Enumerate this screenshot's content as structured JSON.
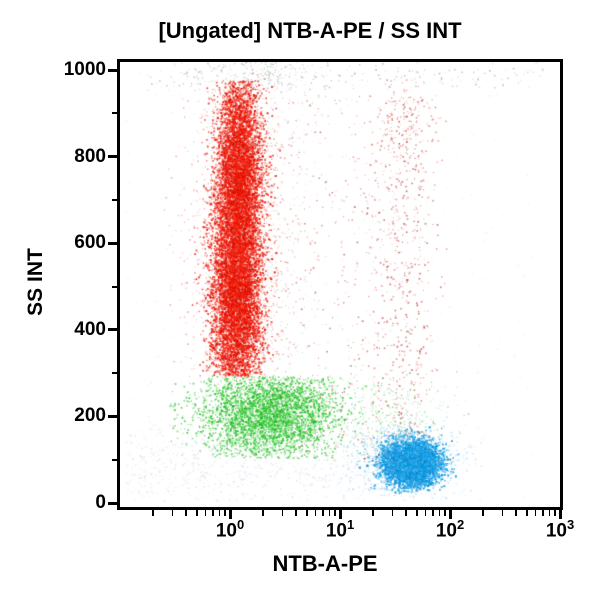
{
  "chart_data": {
    "type": "scatter",
    "subtype": "flow-cytometry-dot-plot",
    "title": "[Ungated] NTB-A-PE / SS INT",
    "xlabel": "NTB-A-PE",
    "ylabel": "SS INT",
    "x_scale": "log10",
    "xlim_log10": [
      -1,
      3
    ],
    "ylim": [
      0,
      1000
    ],
    "x_major_tick_base": "10",
    "x_major_tick_exponents": [
      0,
      1,
      2,
      3
    ],
    "x_minor_ticks_per_decade": [
      2,
      3,
      4,
      5,
      6,
      7,
      8,
      9
    ],
    "y_ticks": [
      0,
      200,
      400,
      600,
      800,
      1000
    ],
    "y_minor_ticks": [
      100,
      300,
      500,
      700,
      900
    ],
    "grid": "off",
    "legend": "none",
    "frame_color": "#000000",
    "background_color": "#ffffff",
    "populations": [
      {
        "name": "top-smear-gray",
        "desc": "sparse gray debris band along top frame",
        "n": 230,
        "x": {
          "dist": "uniform",
          "min": -0.75,
          "max": 2.85
        },
        "y": {
          "dist": "normal",
          "mean": 992,
          "sd": 26,
          "min": 912,
          "max": 1022
        },
        "colors": [
          "#b6b6b6",
          "#a2a2a2",
          "#cfcfcf",
          "#8f9e9a"
        ],
        "alpha": 0.65,
        "size": 1.0
      },
      {
        "name": "top-smear-gray-cluster",
        "desc": "denser gray smear above red peak",
        "n": 150,
        "x": {
          "dist": "normal",
          "mean": 0.28,
          "sd": 0.22,
          "min": -0.3,
          "max": 1.0
        },
        "y": {
          "dist": "normal",
          "mean": 982,
          "sd": 28,
          "min": 905,
          "max": 1022
        },
        "colors": [
          "#b0b0b0",
          "#c4c4c4",
          "#9aa8a4"
        ],
        "alpha": 0.6,
        "size": 1.0
      },
      {
        "name": "red-main-lower",
        "desc": "dense red core near 10^0, SS 300-700",
        "n": 6800,
        "x": {
          "dist": "normal",
          "mean": 0.06,
          "sd": 0.115,
          "min": -0.6,
          "max": 0.75
        },
        "y": {
          "dist": "normal",
          "mean": 495,
          "sd": 150,
          "min": 293,
          "max": 930
        },
        "colors": [
          "#f01000",
          "#e51400",
          "#ff2a14",
          "#d50f00"
        ],
        "alpha": 0.8,
        "size": 1.25
      },
      {
        "name": "red-main-upper",
        "desc": "red core upper half SS 550-970",
        "n": 4200,
        "x": {
          "dist": "normal",
          "mean": 0.09,
          "sd": 0.1,
          "min": -0.5,
          "max": 0.7
        },
        "y": {
          "dist": "normal",
          "mean": 790,
          "sd": 105,
          "min": 540,
          "max": 975
        },
        "colors": [
          "#f01000",
          "#e51400",
          "#ff2a14",
          "#d50f00"
        ],
        "alpha": 0.75,
        "size": 1.2
      },
      {
        "name": "red-halo",
        "desc": "loose red fringe around core",
        "n": 1500,
        "x": {
          "dist": "normal",
          "mean": 0.07,
          "sd": 0.24,
          "min": -0.95,
          "max": 1.1
        },
        "y": {
          "dist": "normal",
          "mean": 560,
          "sd": 235,
          "min": 272,
          "max": 1000
        },
        "colors": [
          "#f4766e",
          "#ee3c30",
          "#fa9890",
          "#e22418"
        ],
        "alpha": 0.45,
        "size": 1.0
      },
      {
        "name": "red-mid-scatter",
        "desc": "sparse red events between core and right streak",
        "n": 380,
        "x": {
          "dist": "uniform",
          "min": 0.38,
          "max": 1.38
        },
        "y": {
          "dist": "uniform",
          "min": 95,
          "max": 930
        },
        "colors": [
          "#e05048",
          "#cc2a22",
          "#f28c86",
          "#8b1a12"
        ],
        "alpha": 0.55,
        "size": 1.0
      },
      {
        "name": "red-right-column",
        "desc": "sparse red vertical streak near 10^1.6",
        "n": 650,
        "x": {
          "dist": "normal",
          "mean": 1.58,
          "sd": 0.15,
          "min": 1.1,
          "max": 2.1
        },
        "y": {
          "dist": "uniform",
          "min": 95,
          "max": 940
        },
        "colors": [
          "#d93a30",
          "#b02018",
          "#ef7068",
          "#901510",
          "#f4a0a0"
        ],
        "alpha": 0.6,
        "size": 1.05
      },
      {
        "name": "red-right-top-knot",
        "desc": "denser red knot at top of right streak",
        "n": 130,
        "x": {
          "dist": "normal",
          "mean": 1.62,
          "sd": 0.12,
          "min": 1.2,
          "max": 2.0
        },
        "y": {
          "dist": "normal",
          "mean": 880,
          "sd": 60,
          "min": 740,
          "max": 1000
        },
        "colors": [
          "#d93a30",
          "#ef7068",
          "#a81d14"
        ],
        "alpha": 0.55,
        "size": 1.0
      },
      {
        "name": "green-main",
        "desc": "green band SS 100-290 centered 10^0.36",
        "n": 3600,
        "x": {
          "dist": "normal",
          "mean": 0.36,
          "sd": 0.32,
          "min": -0.55,
          "max": 1.5
        },
        "y": {
          "dist": "normal",
          "mean": 205,
          "sd": 52,
          "min": 103,
          "max": 292
        },
        "colors": [
          "#2fd02f",
          "#1fbc1f",
          "#49d849",
          "#10a810"
        ],
        "alpha": 0.7,
        "size": 1.15
      },
      {
        "name": "green-right-tail",
        "desc": "sparse green scatter extending right above blue",
        "n": 320,
        "x": {
          "dist": "normal",
          "mean": 1.45,
          "sd": 0.3,
          "min": 0.9,
          "max": 2.2
        },
        "y": {
          "dist": "normal",
          "mean": 195,
          "sd": 60,
          "min": 90,
          "max": 330
        },
        "colors": [
          "#3fcc6a",
          "#2fd02f",
          "#7adb96"
        ],
        "alpha": 0.4,
        "size": 1.0
      },
      {
        "name": "green-specks-upper",
        "desc": "faint green specks mixed through red cloud",
        "n": 260,
        "x": {
          "dist": "normal",
          "mean": 0.28,
          "sd": 0.35,
          "min": -0.6,
          "max": 1.2
        },
        "y": {
          "dist": "uniform",
          "min": 300,
          "max": 1000
        },
        "colors": [
          "#57c878",
          "#8fd8a0",
          "#3fae5f"
        ],
        "alpha": 0.32,
        "size": 1.0
      },
      {
        "name": "blue-main",
        "desc": "dense azure ellipse centered 10^1.65, SS 92",
        "n": 5200,
        "x": {
          "dist": "normal",
          "mean": 1.65,
          "sd": 0.125,
          "min": 1.15,
          "max": 2.12
        },
        "y": {
          "dist": "normal",
          "mean": 92,
          "sd": 26,
          "min": 22,
          "max": 178
        },
        "colors": [
          "#12a0ea",
          "#0a93dd",
          "#2eb0f2",
          "#0584cc"
        ],
        "alpha": 0.85,
        "size": 1.25
      },
      {
        "name": "blue-halo",
        "desc": "loose blue fringe around azure ellipse",
        "n": 1000,
        "x": {
          "dist": "normal",
          "mean": 1.6,
          "sd": 0.25,
          "min": 0.85,
          "max": 2.35
        },
        "y": {
          "dist": "normal",
          "mean": 100,
          "sd": 42,
          "min": 8,
          "max": 215
        },
        "colors": [
          "#5cc0f0",
          "#8cd2f4",
          "#3ab0ea"
        ],
        "alpha": 0.4,
        "size": 1.0
      },
      {
        "name": "debris-bottom",
        "desc": "faint multicolor debris along bottom left",
        "n": 780,
        "x": {
          "dist": "uniform",
          "min": -0.95,
          "max": 1.5
        },
        "y": {
          "dist": "normal",
          "mean": 85,
          "sd": 55,
          "min": 4,
          "max": 205
        },
        "colors": [
          "#a8d4ee",
          "#c8c0e8",
          "#eebcc8",
          "#b8d8cc",
          "#d8d8ee"
        ],
        "alpha": 0.45,
        "size": 1.0
      },
      {
        "name": "faint-field",
        "desc": "very sparse faint events across plot",
        "n": 420,
        "x": {
          "dist": "uniform",
          "min": -0.95,
          "max": 2.75
        },
        "y": {
          "dist": "uniform",
          "min": 5,
          "max": 1010
        },
        "colors": [
          "#e8b8c0",
          "#c0d8ec",
          "#d0e4d8",
          "#d8c8dc"
        ],
        "alpha": 0.28,
        "size": 1.0
      }
    ]
  }
}
